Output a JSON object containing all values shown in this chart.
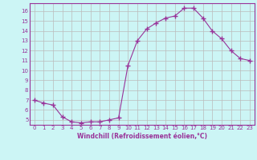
{
  "x": [
    0,
    1,
    2,
    3,
    4,
    5,
    6,
    7,
    8,
    9,
    10,
    11,
    12,
    13,
    14,
    15,
    16,
    17,
    18,
    19,
    20,
    21,
    22,
    23
  ],
  "y": [
    7.0,
    6.7,
    6.5,
    5.3,
    4.8,
    4.7,
    4.8,
    4.8,
    5.0,
    5.2,
    10.5,
    13.0,
    14.2,
    14.8,
    15.3,
    15.5,
    16.3,
    16.3,
    15.3,
    14.0,
    13.2,
    12.0,
    11.2,
    11.0
  ],
  "line_color": "#993399",
  "marker": "+",
  "marker_size": 4,
  "bg_color": "#ccf5f5",
  "grid_color": "#bbbbbb",
  "xlabel": "Windchill (Refroidissement éolien,°C)",
  "xlabel_color": "#993399",
  "tick_color": "#993399",
  "ylim": [
    4.5,
    16.8
  ],
  "xlim": [
    -0.5,
    23.5
  ],
  "yticks": [
    5,
    6,
    7,
    8,
    9,
    10,
    11,
    12,
    13,
    14,
    15,
    16
  ],
  "xticks": [
    0,
    1,
    2,
    3,
    4,
    5,
    6,
    7,
    8,
    9,
    10,
    11,
    12,
    13,
    14,
    15,
    16,
    17,
    18,
    19,
    20,
    21,
    22,
    23
  ],
  "font_size_ticks": 5,
  "font_size_xlabel": 5.5
}
